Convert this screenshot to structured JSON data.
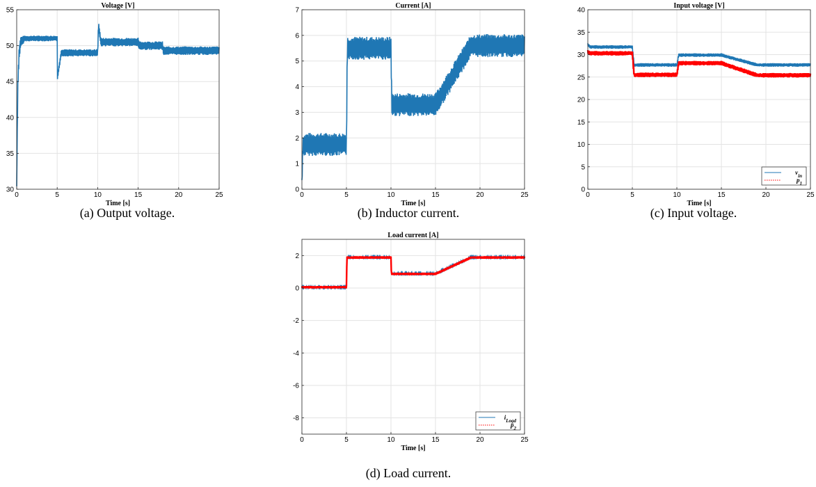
{
  "captions": [
    "(a) Output voltage.",
    "(b) Inductor current.",
    "(c) Input voltage.",
    "(d) Load current."
  ],
  "colors": {
    "blue": "#1f77b4",
    "red": "#ff0000",
    "grid": "#e3e3e3"
  },
  "chart_data": [
    {
      "type": "line",
      "title": "Voltage [V]",
      "xlabel": "Time [s]",
      "ylabel": "",
      "xlim": [
        0,
        25
      ],
      "ylim": [
        30,
        55
      ],
      "xticks": [
        0,
        5,
        10,
        15,
        20,
        25
      ],
      "yticks": [
        30,
        35,
        40,
        45,
        50,
        55
      ],
      "grid": true,
      "series": [
        {
          "color": "#1f77b4",
          "style": "solid",
          "x": [
            0,
            0.05,
            0.15,
            0.3,
            0.5,
            1,
            5,
            5.02,
            5.5,
            10,
            10.1,
            10.4,
            15,
            15.1,
            18,
            18.1,
            25
          ],
          "y": [
            30,
            36,
            45,
            49,
            50.5,
            51,
            51,
            45.5,
            49,
            49,
            52.8,
            50.5,
            50.5,
            50,
            50,
            49.3,
            49.3
          ],
          "band": [
            0.5,
            0.5,
            1,
            1,
            0.8,
            0.4,
            0.4,
            0.3,
            0.5,
            0.5,
            0.6,
            0.6,
            0.6,
            0.6,
            0.6,
            0.6,
            0.6
          ]
        }
      ]
    },
    {
      "type": "line",
      "title": "Current [A]",
      "xlabel": "Time [s]",
      "ylabel": "",
      "xlim": [
        0,
        25
      ],
      "ylim": [
        0,
        7
      ],
      "xticks": [
        0,
        5,
        10,
        15,
        20,
        25
      ],
      "yticks": [
        0,
        1,
        2,
        3,
        4,
        5,
        6,
        7
      ],
      "grid": true,
      "series": [
        {
          "color": "#1f77b4",
          "style": "solid",
          "x": [
            0,
            0.1,
            0.5,
            5,
            5.1,
            10,
            10.1,
            15,
            19,
            25
          ],
          "y": [
            0.2,
            1.7,
            1.75,
            1.75,
            5.5,
            5.5,
            3.3,
            3.3,
            5.6,
            5.6
          ],
          "band": [
            0.2,
            0.4,
            0.45,
            0.45,
            0.45,
            0.45,
            0.45,
            0.45,
            0.45,
            0.45
          ]
        }
      ]
    },
    {
      "type": "line",
      "title": "Input voltage [V]",
      "xlabel": "Time [s]",
      "ylabel": "",
      "xlim": [
        0,
        25
      ],
      "ylim": [
        0,
        40
      ],
      "xticks": [
        0,
        5,
        10,
        15,
        20,
        25
      ],
      "yticks": [
        0,
        5,
        10,
        15,
        20,
        25,
        30,
        35,
        40
      ],
      "grid": true,
      "legend": {
        "position": "bottom-right",
        "entries": [
          "v_in",
          "p_1"
        ]
      },
      "series": [
        {
          "name": "v_in",
          "color": "#1f77b4",
          "style": "solid",
          "x": [
            0,
            0.3,
            5,
            5.2,
            10,
            10.2,
            15,
            19,
            25
          ],
          "y": [
            32.2,
            31.7,
            31.7,
            27.7,
            27.7,
            29.9,
            29.9,
            27.7,
            27.7
          ],
          "band": [
            0.4,
            0.4,
            0.4,
            0.4,
            0.4,
            0.4,
            0.4,
            0.4,
            0.4
          ]
        },
        {
          "name": "p_1",
          "color": "#ff0000",
          "style": "dotted",
          "x": [
            0,
            0.3,
            5,
            5.2,
            10,
            10.2,
            15,
            19,
            25
          ],
          "y": [
            30.6,
            30.3,
            30.3,
            25.5,
            25.5,
            28.1,
            28.1,
            25.4,
            25.4
          ],
          "band": [
            0.5,
            0.5,
            0.5,
            0.5,
            0.5,
            0.5,
            0.5,
            0.5,
            0.5
          ]
        }
      ]
    },
    {
      "type": "line",
      "title": "Load current [A]",
      "xlabel": "Time [s]",
      "ylabel": "",
      "xlim": [
        0,
        25
      ],
      "ylim": [
        -9,
        3
      ],
      "xticks": [
        0,
        5,
        10,
        15,
        20,
        25
      ],
      "yticks": [
        -8,
        -6,
        -4,
        -2,
        0,
        2
      ],
      "grid": true,
      "legend": {
        "position": "bottom-right",
        "entries": [
          "i_Load",
          "p̂_2"
        ]
      },
      "series": [
        {
          "name": "i_Load",
          "color": "#1f77b4",
          "style": "solid",
          "x": [
            0,
            5,
            5.05,
            10,
            10.05,
            15,
            19,
            25
          ],
          "y": [
            0.05,
            0.05,
            1.9,
            1.9,
            0.9,
            0.9,
            1.9,
            1.9
          ],
          "band": [
            0.05,
            0.05,
            0.05,
            0.05,
            0.05,
            0.05,
            0.05,
            0.05
          ]
        },
        {
          "name": "p̂_2",
          "color": "#ff0000",
          "style": "dotted",
          "x": [
            0,
            5,
            5.05,
            10,
            10.05,
            15,
            19,
            25
          ],
          "y": [
            0.05,
            0.05,
            1.88,
            1.88,
            0.87,
            0.87,
            1.88,
            1.88
          ],
          "band": [
            0.08,
            0.08,
            0.08,
            0.08,
            0.08,
            0.08,
            0.08,
            0.08
          ]
        }
      ]
    }
  ]
}
